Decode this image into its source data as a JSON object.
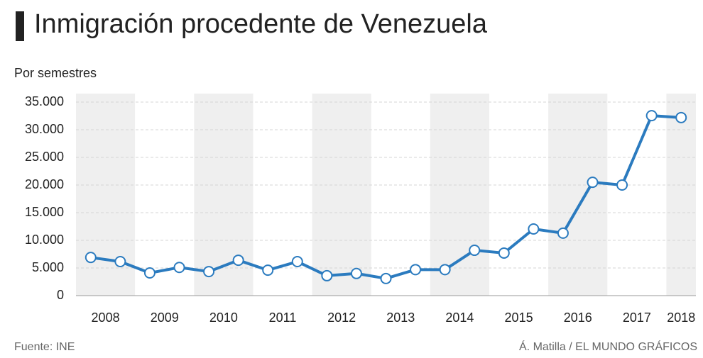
{
  "chart_data": {
    "type": "line",
    "title": "Inmigración procedente de Venezuela",
    "subtitle": "Por semestres",
    "source": "Fuente: INE",
    "credit": "Á. Matilla / EL MUNDO GRÁFICOS",
    "categories": [
      "2008",
      null,
      "2009",
      null,
      "2010",
      null,
      "2011",
      null,
      "2012",
      null,
      "2013",
      null,
      "2014",
      null,
      "2015",
      null,
      "2016",
      null,
      "2017",
      null,
      "2018"
    ],
    "series": [
      {
        "color": "#2b7bbf",
        "values": [
          6900,
          6150,
          4100,
          5100,
          4350,
          6400,
          4600,
          6150,
          3600,
          4000,
          3100,
          4700,
          4700,
          8200,
          7700,
          12050,
          11300,
          20500,
          20000,
          32550,
          32200
        ]
      }
    ],
    "ylim": [
      0,
      35000
    ],
    "yticks": [
      0,
      {
        "value": 5000,
        "label": "5.000"
      },
      {
        "value": 10000,
        "label": "10.000"
      },
      {
        "value": 15000,
        "label": "15.000"
      },
      {
        "value": 20000,
        "label": "20.000"
      },
      {
        "value": 25000,
        "label": "25.000"
      },
      {
        "value": 30000,
        "label": "30.000"
      },
      {
        "value": 35000,
        "label": "35.000"
      }
    ],
    "grid": true
  }
}
